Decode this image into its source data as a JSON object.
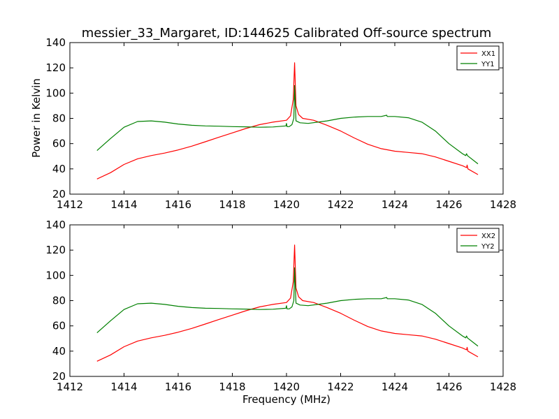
{
  "chart_data": [
    {
      "type": "line",
      "title": "messier_33_Margaret, ID:144625 Calibrated Off-source spectrum",
      "xlabel": "",
      "ylabel": "Power in Kelvin",
      "xlim": [
        1412,
        1428
      ],
      "ylim": [
        20,
        140
      ],
      "xticks": [
        "1412",
        "1414",
        "1416",
        "1418",
        "1420",
        "1422",
        "1424",
        "1426",
        "1428"
      ],
      "yticks": [
        "20",
        "40",
        "60",
        "80",
        "100",
        "120",
        "140"
      ],
      "legend_position": "top-right",
      "series": [
        {
          "name": "XX1",
          "color": "#ff0000",
          "x": [
            1413.0,
            1413.5,
            1414.0,
            1414.5,
            1415.0,
            1415.5,
            1416.0,
            1416.5,
            1417.0,
            1417.5,
            1418.0,
            1418.5,
            1419.0,
            1419.5,
            1420.0,
            1420.15,
            1420.25,
            1420.3,
            1420.35,
            1420.45,
            1420.6,
            1421.0,
            1421.5,
            1422.0,
            1422.5,
            1423.0,
            1423.5,
            1424.0,
            1424.5,
            1425.0,
            1425.5,
            1426.0,
            1426.5,
            1426.65,
            1426.67,
            1426.7,
            1427.07
          ],
          "y": [
            32,
            37,
            43.5,
            48,
            50.5,
            52.5,
            55,
            58,
            61.5,
            65,
            68.5,
            72,
            75,
            77,
            78.5,
            82,
            95,
            124,
            90,
            83,
            80,
            78.5,
            74.5,
            70,
            64.5,
            59.5,
            56,
            54,
            53,
            52,
            49.5,
            46,
            42.5,
            41,
            43,
            40,
            35.5
          ]
        },
        {
          "name": "YY1",
          "color": "#008000",
          "x": [
            1413.0,
            1413.5,
            1414.0,
            1414.5,
            1415.0,
            1415.5,
            1416.0,
            1416.5,
            1417.0,
            1417.5,
            1418.0,
            1418.5,
            1419.0,
            1419.5,
            1419.98,
            1420.0,
            1420.02,
            1420.1,
            1420.2,
            1420.27,
            1420.3,
            1420.35,
            1420.5,
            1420.8,
            1421.5,
            1422.0,
            1422.5,
            1423.0,
            1423.5,
            1423.7,
            1423.72,
            1423.75,
            1424.0,
            1424.5,
            1425.0,
            1425.5,
            1426.0,
            1426.5,
            1426.62,
            1426.65,
            1426.68,
            1427.07
          ],
          "y": [
            54.5,
            64,
            73,
            77.5,
            78,
            77,
            75.5,
            74.5,
            74,
            73.8,
            73.5,
            73.3,
            73,
            73.2,
            74,
            76,
            73.5,
            73.5,
            75,
            80,
            106,
            78,
            76.5,
            76,
            78,
            80,
            81,
            81.5,
            81.5,
            82.5,
            81.5,
            81.5,
            81.5,
            80.5,
            77,
            70,
            60,
            52,
            50.5,
            52,
            50.5,
            44
          ]
        }
      ]
    },
    {
      "type": "line",
      "title": "",
      "xlabel": "Frequency (MHz)",
      "ylabel": "",
      "xlim": [
        1412,
        1428
      ],
      "ylim": [
        20,
        140
      ],
      "xticks": [
        "1412",
        "1414",
        "1416",
        "1418",
        "1420",
        "1422",
        "1424",
        "1426",
        "1428"
      ],
      "yticks": [
        "20",
        "40",
        "60",
        "80",
        "100",
        "120",
        "140"
      ],
      "legend_position": "top-right",
      "series": [
        {
          "name": "XX2",
          "color": "#ff0000",
          "x": [
            1413.0,
            1413.5,
            1414.0,
            1414.5,
            1415.0,
            1415.5,
            1416.0,
            1416.5,
            1417.0,
            1417.5,
            1418.0,
            1418.5,
            1419.0,
            1419.5,
            1420.0,
            1420.15,
            1420.25,
            1420.3,
            1420.35,
            1420.45,
            1420.6,
            1421.0,
            1421.5,
            1422.0,
            1422.5,
            1423.0,
            1423.5,
            1424.0,
            1424.5,
            1425.0,
            1425.5,
            1426.0,
            1426.5,
            1426.65,
            1426.67,
            1426.7,
            1427.07
          ],
          "y": [
            32,
            37,
            43.5,
            48,
            50.5,
            52.5,
            55,
            58,
            61.5,
            65,
            68.5,
            72,
            75,
            77,
            78.5,
            82,
            95,
            124,
            90,
            83,
            80,
            78.5,
            74.5,
            70,
            64.5,
            59.5,
            56,
            54,
            53,
            52,
            49.5,
            46,
            42.5,
            41,
            43,
            40,
            35.5
          ]
        },
        {
          "name": "YY2",
          "color": "#008000",
          "x": [
            1413.0,
            1413.5,
            1414.0,
            1414.5,
            1415.0,
            1415.5,
            1416.0,
            1416.5,
            1417.0,
            1417.5,
            1418.0,
            1418.5,
            1419.0,
            1419.5,
            1419.98,
            1420.0,
            1420.02,
            1420.1,
            1420.2,
            1420.27,
            1420.3,
            1420.35,
            1420.5,
            1420.8,
            1421.5,
            1422.0,
            1422.5,
            1423.0,
            1423.5,
            1423.7,
            1423.72,
            1423.75,
            1424.0,
            1424.5,
            1425.0,
            1425.5,
            1426.0,
            1426.5,
            1426.62,
            1426.65,
            1426.68,
            1427.07
          ],
          "y": [
            54.5,
            64,
            73,
            77.5,
            78,
            77,
            75.5,
            74.5,
            74,
            73.8,
            73.5,
            73.3,
            73,
            73.2,
            74,
            76,
            73.5,
            73.5,
            75,
            80,
            106,
            78,
            76.5,
            76,
            78,
            80,
            81,
            81.5,
            81.5,
            82.5,
            81.5,
            81.5,
            81.5,
            80.5,
            77,
            70,
            60,
            52,
            50.5,
            52,
            50.5,
            44
          ]
        }
      ]
    }
  ]
}
